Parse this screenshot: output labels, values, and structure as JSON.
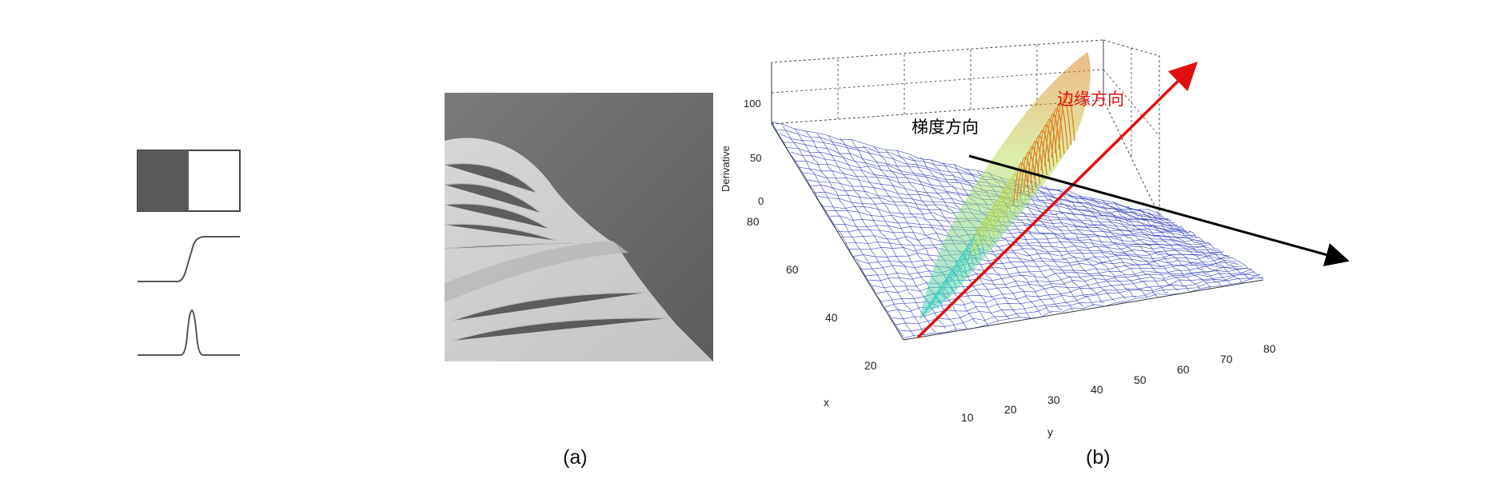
{
  "captions": {
    "a": "(a)",
    "b": "(b)"
  },
  "plot": {
    "zlabel": "Derivative",
    "xlabel": "x",
    "ylabel": "y",
    "z_ticks": [
      "100",
      "50",
      "0"
    ],
    "x_ticks": [
      "80",
      "60",
      "40",
      "20"
    ],
    "y_ticks": [
      "10",
      "20",
      "30",
      "40",
      "50",
      "60",
      "70",
      "80"
    ],
    "annotation_edge": "边缘方向",
    "annotation_gradient": "梯度方向",
    "colors": {
      "mesh": "#1f2fbf",
      "edge_arrow": "#e01010",
      "gradient_arrow": "#000000",
      "ridge_high": "#e08020",
      "ridge_mid": "#40d0c0"
    }
  }
}
